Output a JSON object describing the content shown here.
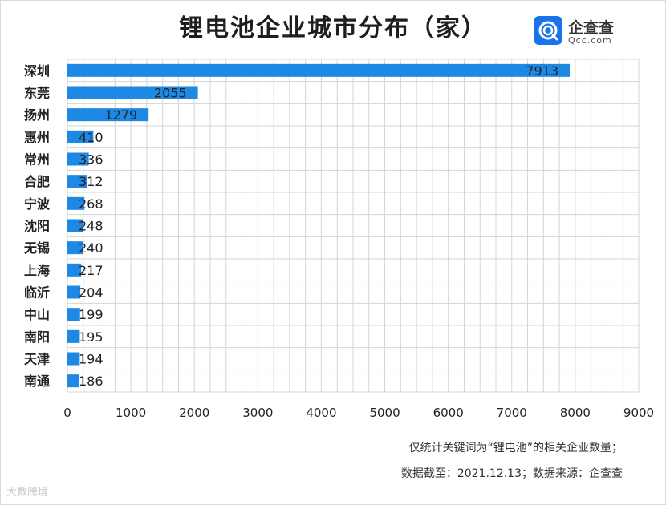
{
  "header": {
    "title": "锂电池企业城市分布（家）"
  },
  "brand": {
    "name": "企查查",
    "url": "Qcc.com",
    "color": "#1a73e8"
  },
  "chart_data": {
    "type": "bar",
    "orientation": "horizontal",
    "title": "锂电池企业城市分布（家）",
    "categories": [
      "深圳",
      "东莞",
      "扬州",
      "惠州",
      "常州",
      "合肥",
      "宁波",
      "沈阳",
      "无锡",
      "上海",
      "临沂",
      "中山",
      "南阳",
      "天津",
      "南通"
    ],
    "values": [
      7913,
      2055,
      1279,
      410,
      336,
      312,
      268,
      248,
      240,
      217,
      204,
      199,
      195,
      194,
      186
    ],
    "xlim": [
      0,
      9000
    ],
    "xticks": [
      0,
      1000,
      2000,
      3000,
      4000,
      5000,
      6000,
      7000,
      8000,
      9000
    ],
    "grid": true,
    "bar_color": "#1e88e5"
  },
  "footnotes": {
    "line1": "仅统计关键词为“锂电池”的相关企业数量；",
    "line2": "数据截至：2021.12.13；数据来源：企查查"
  },
  "watermark": "大数跨境"
}
